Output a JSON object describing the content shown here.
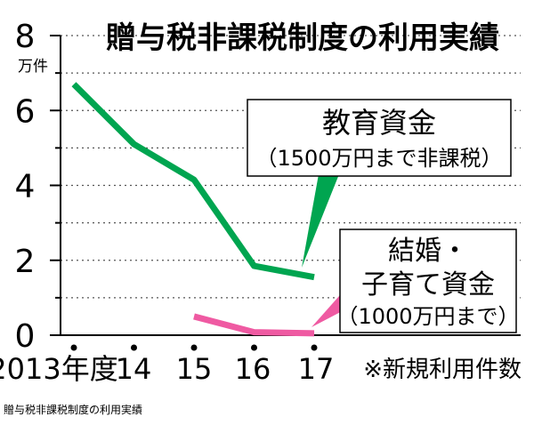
{
  "caption": "贈与税非課税制度の利用実績",
  "chart_data": {
    "type": "line",
    "title": "贈与税非課税制度の利用実績",
    "y_unit": "万件",
    "ylim": [
      0,
      8
    ],
    "y_ticks": [
      0,
      2,
      4,
      6,
      8
    ],
    "x": [
      2013,
      2014,
      2015,
      2016,
      2017
    ],
    "x_tick_labels": [
      "2013年度",
      "14",
      "15",
      "16",
      "17"
    ],
    "grid": true,
    "series": [
      {
        "name": "教育資金",
        "label_lines": [
          "教育資金",
          "（1500万円まで非課税）"
        ],
        "color": "#00a550",
        "points": [
          [
            2013,
            6.7
          ],
          [
            2014,
            5.1
          ],
          [
            2015,
            4.15
          ],
          [
            2016,
            1.85
          ],
          [
            2017,
            1.55
          ]
        ]
      },
      {
        "name": "結婚・子育て資金",
        "label_lines": [
          "結婚・",
          "子育て資金",
          "（1000万円まで）"
        ],
        "color": "#ef5aa2",
        "points": [
          [
            2015,
            0.5
          ],
          [
            2016,
            0.08
          ],
          [
            2017,
            0.05
          ]
        ]
      }
    ],
    "note": "※新規利用件数"
  }
}
